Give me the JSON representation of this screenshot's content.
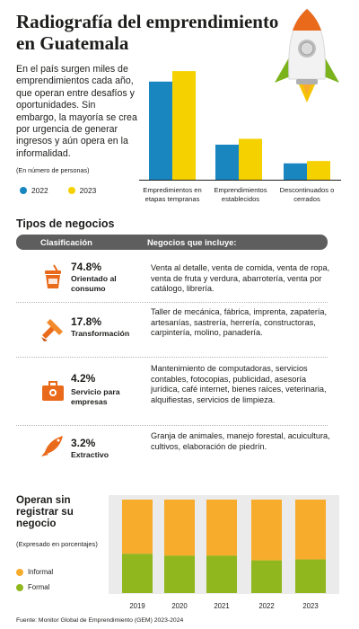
{
  "title": "Radiografía del emprendimiento en Guatemala",
  "intro": "En el país surgen miles de emprendimientos cada año, que operan entre desafíos y oportunidades. Sin embargo, la mayoría se crea por urgencia de generar ingresos y aún opera en la informalidad.",
  "colors": {
    "2022": "#1a86c0",
    "2023": "#f5d100",
    "informal": "#f7ac2c",
    "formal": "#91b71e",
    "header": "#5e5e5e",
    "icon_orange": "#ea6a1b"
  },
  "chart_data": [
    {
      "type": "bar",
      "note": "(En número de personas)",
      "categories": [
        "Empredimientos en etapas tempranas",
        "Emprendimientos establecidos",
        "Descontinuados o cerrados"
      ],
      "series": [
        {
          "name": "2022",
          "values": [
            84,
            30,
            14
          ]
        },
        {
          "name": "2023",
          "values": [
            93,
            35,
            16
          ]
        }
      ]
    },
    {
      "type": "bar",
      "stacked": true,
      "title": "Operan sin registrar su negocio",
      "note": "(Expresado en porcentajes)",
      "categories": [
        "2019",
        "2020",
        "2021",
        "2022",
        "2023"
      ],
      "series": [
        {
          "name": "Informal",
          "values": [
            58,
            60,
            60,
            65,
            64
          ]
        },
        {
          "name": "Formal",
          "values": [
            42,
            40,
            40,
            35,
            36
          ]
        }
      ]
    }
  ],
  "types_section": {
    "title": "Tipos de negocios",
    "header_col1": "Clasificación",
    "header_col2": "Negocios que incluye:",
    "rows": [
      {
        "icon": "cup-icon",
        "pct": "74.8%",
        "name": "Orientado al consumo",
        "desc": "Venta al detalle, venta de comida, venta de ropa, venta de fruta y verdura, abarrotería, venta por catálogo, librería."
      },
      {
        "icon": "tools-icon",
        "pct": "17.8%",
        "name": "Transformación",
        "desc": "Taller de mecánica, fábrica, imprenta, zapatería, artesanías, sastrería, herrería, constructoras, carpintería, molino, panadería."
      },
      {
        "icon": "briefcase-icon",
        "pct": "4.2%",
        "name": "Servicio para empresas",
        "desc": "Mantenimiento de computadoras, servicios contables, fotocopias, publicidad, asesoría jurídica, café internet, bienes raíces, veterinaria, alquifiestas, servicios de limpieza."
      },
      {
        "icon": "fish-icon",
        "pct": "3.2%",
        "name": "Extractivo",
        "desc": "Granja de animales, manejo forestal, acuicultura, cultivos, elaboración de piedrín."
      }
    ]
  },
  "source": "Fuente: Monitor Global de Emprendimiento (GEM) 2023-2024"
}
